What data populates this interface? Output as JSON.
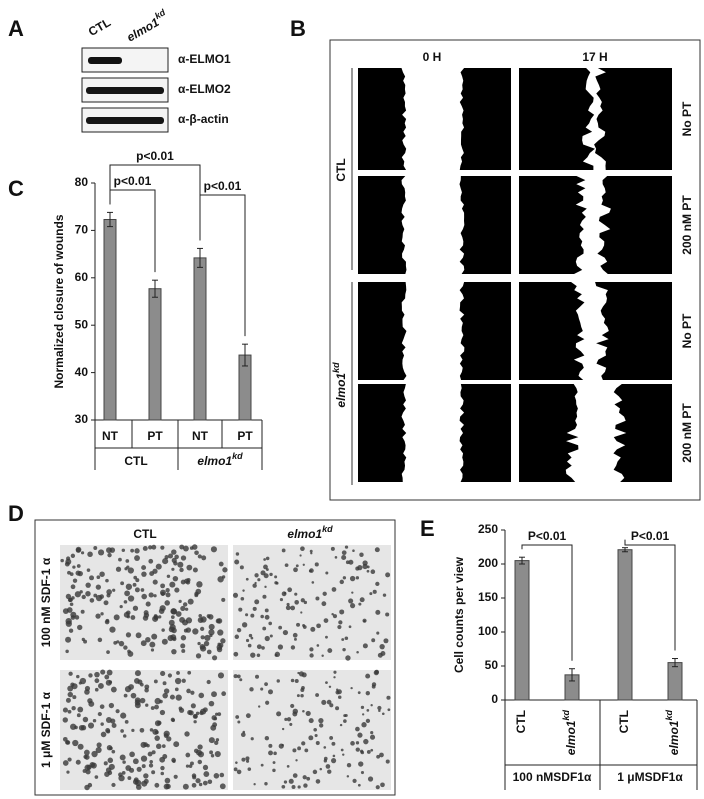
{
  "panel_letters": [
    "A",
    "B",
    "C",
    "D",
    "E"
  ],
  "blot": {
    "lanes": [
      {
        "text": "CTL"
      },
      {
        "text": "elmo1",
        "sup": "kd"
      }
    ],
    "antibodies": [
      "α-ELMO1",
      "α-ELMO2",
      "α-β-actin"
    ]
  },
  "wound": {
    "times": [
      "0 H",
      "17 H"
    ],
    "conditions": [
      "No PT",
      "200 nM PT",
      "No PT",
      "200 nM PT"
    ],
    "groups": [
      {
        "text": "CTL"
      },
      {
        "text": "elmo1",
        "sup": "kd"
      }
    ]
  },
  "migration": {
    "columns": [
      {
        "text": "CTL"
      },
      {
        "text": "elmo1",
        "sup": "kd"
      }
    ],
    "rows": [
      "100 nM SDF-1 α",
      "1 μM SDF-1 α"
    ]
  },
  "chart_data": [
    {
      "type": "bar",
      "y_label": "Normalized closure of wounds",
      "categories": [
        "NT",
        "PT",
        "NT",
        "PT"
      ],
      "groups": [
        {
          "text": "CTL"
        },
        {
          "text": "elmo1",
          "sup": "kd"
        }
      ],
      "values": [
        72.3,
        57.7,
        64.2,
        43.7
      ],
      "errors": [
        1.5,
        1.8,
        2.0,
        2.3
      ],
      "color": "#8c8c8c",
      "ylim": [
        30,
        80
      ],
      "yticks": [
        30,
        40,
        50,
        60,
        70,
        80
      ],
      "annotations": [
        "p<0.01",
        "p<0.01",
        "p<0.01"
      ]
    },
    {
      "type": "bar",
      "y_label": "Cell counts per view",
      "categories": [
        {
          "text": "CTL"
        },
        {
          "text": "elmo1",
          "sup": "kd"
        },
        {
          "text": "CTL"
        },
        {
          "text": "elmo1",
          "sup": "kd"
        }
      ],
      "groups": [
        {
          "text": "100 nMSDF1α"
        },
        {
          "text": "1 μMSDF1α"
        }
      ],
      "values": [
        205,
        37,
        221,
        55
      ],
      "errors": [
        5,
        9,
        3,
        6
      ],
      "color": "#8c8c8c",
      "ylim": [
        0,
        250
      ],
      "yticks": [
        0,
        50,
        100,
        150,
        200,
        250
      ],
      "annotations": [
        "P<0.01",
        "P<0.01"
      ]
    }
  ]
}
